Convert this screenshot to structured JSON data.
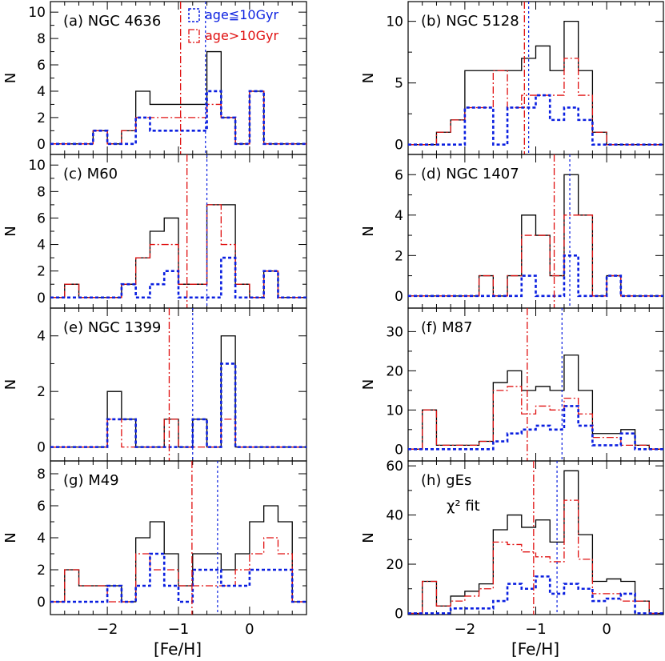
{
  "figure": {
    "xlabel_prefix": "[Fe/H]",
    "legend": {
      "young_label": "age≦10Gyr",
      "old_label": "age>10Gyr"
    },
    "colors": {
      "total": "#000000",
      "young": "#0a1fe0",
      "old": "#e01010"
    }
  },
  "chart_data": [
    {
      "type": "histogram",
      "panel_label": "(a) NGC 4636",
      "xlim": [
        -2.8,
        0.8
      ],
      "ylim": [
        -0.8,
        10.8
      ],
      "yticks": [
        0,
        2,
        4,
        6,
        8,
        10
      ],
      "ytick_labels": [
        "0",
        "2",
        "4",
        "6",
        "8",
        "10"
      ],
      "xticks": [
        -2,
        -1,
        0
      ],
      "xtick_labels": [],
      "ylabel": "N",
      "bin_edges": [
        -2.8,
        -2.6,
        -2.4,
        -2.2,
        -2.0,
        -1.8,
        -1.6,
        -1.4,
        -1.2,
        -1.0,
        -0.8,
        -0.6,
        -0.4,
        -0.2,
        0.0,
        0.2,
        0.4,
        0.6,
        0.8
      ],
      "series": [
        {
          "name": "total",
          "values": [
            0,
            0,
            0,
            1,
            0,
            1,
            4,
            3,
            3,
            3,
            3,
            7,
            2,
            0,
            4,
            0,
            0,
            0
          ]
        },
        {
          "name": "old",
          "values": [
            0,
            0,
            0,
            1,
            0,
            1,
            2,
            2,
            2,
            2,
            2,
            3,
            2,
            0,
            4,
            0,
            0,
            0
          ]
        },
        {
          "name": "young",
          "values": [
            0,
            0,
            0,
            1,
            0,
            0,
            2,
            1,
            1,
            1,
            1,
            4,
            2,
            0,
            4,
            0,
            0,
            0
          ]
        }
      ],
      "mean_old": -0.97,
      "mean_young": -0.62,
      "show_legend": true
    },
    {
      "type": "histogram",
      "panel_label": "(b) NGC 5128",
      "xlim": [
        -2.8,
        0.8
      ],
      "ylim": [
        -0.8,
        11.6
      ],
      "yticks": [
        0,
        5,
        10
      ],
      "ytick_labels": [
        "0",
        "5",
        "10"
      ],
      "xticks": [
        -2,
        -1,
        0
      ],
      "xtick_labels": [],
      "ylabel": "N",
      "bin_edges": [
        -2.8,
        -2.6,
        -2.4,
        -2.2,
        -2.0,
        -1.8,
        -1.6,
        -1.4,
        -1.2,
        -1.0,
        -0.8,
        -0.6,
        -0.4,
        -0.2,
        0.0,
        0.2,
        0.4,
        0.6,
        0.8
      ],
      "series": [
        {
          "name": "total",
          "values": [
            0,
            0,
            1,
            2,
            6,
            6,
            6,
            6,
            7,
            8,
            6,
            10,
            6,
            1,
            0,
            0,
            0,
            0
          ]
        },
        {
          "name": "old",
          "values": [
            0,
            0,
            1,
            2,
            3,
            3,
            6,
            3,
            4,
            4,
            4,
            7,
            4,
            1,
            0,
            0,
            0,
            0
          ]
        },
        {
          "name": "young",
          "values": [
            0,
            0,
            0,
            0,
            3,
            3,
            0,
            3,
            3,
            4,
            2,
            3,
            2,
            0,
            0,
            0,
            0,
            0
          ]
        }
      ],
      "mean_old": -1.16,
      "mean_young": -1.1,
      "show_legend": false
    },
    {
      "type": "histogram",
      "panel_label": "(c) M60",
      "xlim": [
        -2.8,
        0.8
      ],
      "ylim": [
        -0.8,
        10.8
      ],
      "yticks": [
        0,
        2,
        4,
        6,
        8,
        10
      ],
      "ytick_labels": [
        "0",
        "2",
        "4",
        "6",
        "8",
        "10"
      ],
      "xticks": [
        -2,
        -1,
        0
      ],
      "xtick_labels": [],
      "ylabel": "N",
      "bin_edges": [
        -2.8,
        -2.6,
        -2.4,
        -2.2,
        -2.0,
        -1.8,
        -1.6,
        -1.4,
        -1.2,
        -1.0,
        -0.8,
        -0.6,
        -0.4,
        -0.2,
        0.0,
        0.2,
        0.4,
        0.6,
        0.8
      ],
      "series": [
        {
          "name": "total",
          "values": [
            0,
            1,
            0,
            0,
            0,
            1,
            3,
            5,
            6,
            1,
            1,
            7,
            7,
            1,
            0,
            2,
            0,
            0
          ]
        },
        {
          "name": "old",
          "values": [
            0,
            1,
            0,
            0,
            0,
            1,
            3,
            4,
            4,
            1,
            1,
            7,
            4,
            1,
            0,
            2,
            0,
            0
          ]
        },
        {
          "name": "young",
          "values": [
            0,
            0,
            0,
            0,
            0,
            1,
            0,
            1,
            2,
            0,
            0,
            0,
            3,
            0,
            0,
            2,
            0,
            0
          ]
        }
      ],
      "mean_old": -0.88,
      "mean_young": -0.6,
      "show_legend": false
    },
    {
      "type": "histogram",
      "panel_label": "(d) NGC 1407",
      "xlim": [
        -2.8,
        0.8
      ],
      "ylim": [
        -0.6,
        7.0
      ],
      "yticks": [
        0,
        2,
        4,
        6
      ],
      "ytick_labels": [
        "0",
        "2",
        "4",
        "6"
      ],
      "xticks": [
        -2,
        -1,
        0
      ],
      "xtick_labels": [],
      "ylabel": "N",
      "bin_edges": [
        -2.8,
        -2.6,
        -2.4,
        -2.2,
        -2.0,
        -1.8,
        -1.6,
        -1.4,
        -1.2,
        -1.0,
        -0.8,
        -0.6,
        -0.4,
        -0.2,
        0.0,
        0.2,
        0.4,
        0.6,
        0.8
      ],
      "series": [
        {
          "name": "total",
          "values": [
            0,
            0,
            0,
            0,
            0,
            1,
            0,
            1,
            4,
            3,
            1,
            6,
            4,
            0,
            1,
            0,
            0,
            0
          ]
        },
        {
          "name": "old",
          "values": [
            0,
            0,
            0,
            0,
            0,
            1,
            0,
            1,
            3,
            3,
            1,
            4,
            4,
            0,
            1,
            0,
            0,
            0
          ]
        },
        {
          "name": "young",
          "values": [
            0,
            0,
            0,
            0,
            0,
            0,
            0,
            0,
            1,
            0,
            0,
            2,
            0,
            0,
            1,
            0,
            0,
            0
          ]
        }
      ],
      "mean_old": -0.74,
      "mean_young": -0.52,
      "show_legend": false
    },
    {
      "type": "histogram",
      "panel_label": "(e) NGC 1399",
      "xlim": [
        -2.8,
        0.8
      ],
      "ylim": [
        -0.5,
        5.0
      ],
      "yticks": [
        0,
        2,
        4
      ],
      "ytick_labels": [
        "0",
        "2",
        "4"
      ],
      "xticks": [
        -2,
        -1,
        0
      ],
      "xtick_labels": [],
      "ylabel": "N",
      "bin_edges": [
        -2.8,
        -2.6,
        -2.4,
        -2.2,
        -2.0,
        -1.8,
        -1.6,
        -1.4,
        -1.2,
        -1.0,
        -0.8,
        -0.6,
        -0.4,
        -0.2,
        0.0,
        0.2,
        0.4,
        0.6,
        0.8
      ],
      "series": [
        {
          "name": "total",
          "values": [
            0,
            0,
            0,
            0,
            2,
            1,
            0,
            0,
            1,
            0,
            1,
            0,
            4,
            0,
            0,
            0,
            0,
            0
          ]
        },
        {
          "name": "old",
          "values": [
            0,
            0,
            0,
            0,
            1,
            0,
            0,
            0,
            1,
            0,
            0,
            0,
            1,
            0,
            0,
            0,
            0,
            0
          ]
        },
        {
          "name": "young",
          "values": [
            0,
            0,
            0,
            0,
            1,
            1,
            0,
            0,
            0,
            0,
            1,
            0,
            3,
            0,
            0,
            0,
            0,
            0
          ]
        }
      ],
      "mean_old": -1.13,
      "mean_young": -0.8,
      "show_legend": false
    },
    {
      "type": "histogram",
      "panel_label": "(f) M87",
      "xlim": [
        -2.8,
        0.8
      ],
      "ylim": [
        -3.0,
        36.0
      ],
      "yticks": [
        0,
        10,
        20,
        30
      ],
      "ytick_labels": [
        "0",
        "10",
        "20",
        "30"
      ],
      "xticks": [
        -2,
        -1,
        0
      ],
      "xtick_labels": [],
      "ylabel": "N",
      "bin_edges": [
        -2.8,
        -2.6,
        -2.4,
        -2.2,
        -2.0,
        -1.8,
        -1.6,
        -1.4,
        -1.2,
        -1.0,
        -0.8,
        -0.6,
        -0.4,
        -0.2,
        0.0,
        0.2,
        0.4,
        0.6,
        0.8
      ],
      "series": [
        {
          "name": "total",
          "values": [
            0,
            10,
            1,
            1,
            1,
            2,
            17,
            20,
            15,
            16,
            15,
            24,
            15,
            4,
            4,
            5,
            1,
            0
          ]
        },
        {
          "name": "old",
          "values": [
            0,
            10,
            1,
            1,
            1,
            2,
            15,
            16,
            9,
            11,
            10,
            13,
            9,
            3,
            3,
            1,
            1,
            0
          ]
        },
        {
          "name": "young",
          "values": [
            0,
            0,
            0,
            0,
            0,
            0,
            2,
            4,
            5,
            6,
            5,
            11,
            6,
            1,
            1,
            4,
            0,
            0
          ]
        }
      ],
      "mean_old": -1.12,
      "mean_young": -0.63,
      "show_legend": false
    },
    {
      "type": "histogram",
      "panel_label": "(g) M49",
      "xlim": [
        -2.8,
        0.8
      ],
      "ylim": [
        -0.8,
        8.8
      ],
      "yticks": [
        0,
        2,
        4,
        6,
        8
      ],
      "ytick_labels": [
        "0",
        "2",
        "4",
        "6",
        "8"
      ],
      "xticks": [
        -2,
        -1,
        0
      ],
      "xtick_labels": [
        "−2",
        "−1",
        "0"
      ],
      "ylabel": "N",
      "bin_edges": [
        -2.8,
        -2.6,
        -2.4,
        -2.2,
        -2.0,
        -1.8,
        -1.6,
        -1.4,
        -1.2,
        -1.0,
        -0.8,
        -0.6,
        -0.4,
        -0.2,
        0.0,
        0.2,
        0.4,
        0.6,
        0.8
      ],
      "series": [
        {
          "name": "total",
          "values": [
            0,
            2,
            1,
            1,
            1,
            0,
            4,
            5,
            3,
            1,
            3,
            3,
            2,
            3,
            5,
            6,
            5,
            0
          ]
        },
        {
          "name": "old",
          "values": [
            0,
            2,
            1,
            1,
            0,
            0,
            3,
            2,
            2,
            1,
            1,
            1,
            1,
            2,
            3,
            4,
            3,
            0
          ]
        },
        {
          "name": "young",
          "values": [
            0,
            0,
            0,
            0,
            1,
            0,
            1,
            3,
            1,
            0,
            2,
            2,
            1,
            1,
            2,
            2,
            2,
            0
          ]
        }
      ],
      "mean_old": -0.81,
      "mean_young": -0.45,
      "show_legend": false
    },
    {
      "type": "histogram",
      "panel_label": "(h) gEs",
      "panel_sublabel": "χ² fit",
      "xlim": [
        -2.8,
        0.8
      ],
      "ylim": [
        -0.5,
        62.0
      ],
      "yticks": [
        0,
        20,
        40,
        60
      ],
      "ytick_labels": [
        "0",
        "20",
        "40",
        "60"
      ],
      "xticks": [
        -2,
        -1,
        0
      ],
      "xtick_labels": [
        "−2",
        "−1",
        "0"
      ],
      "ylabel": "N",
      "bin_edges": [
        -2.8,
        -2.6,
        -2.4,
        -2.2,
        -2.0,
        -1.8,
        -1.6,
        -1.4,
        -1.2,
        -1.0,
        -0.8,
        -0.6,
        -0.4,
        -0.2,
        0.0,
        0.2,
        0.4,
        0.6,
        0.8
      ],
      "series": [
        {
          "name": "total",
          "values": [
            0,
            13,
            3,
            7,
            9,
            12,
            34,
            40,
            35,
            38,
            29,
            58,
            32,
            13,
            14,
            13,
            5,
            0
          ]
        },
        {
          "name": "old",
          "values": [
            0,
            13,
            3,
            5,
            7,
            10,
            29,
            28,
            25,
            23,
            21,
            46,
            22,
            8,
            8,
            5,
            5,
            0
          ]
        },
        {
          "name": "young",
          "values": [
            0,
            0,
            0,
            2,
            2,
            2,
            5,
            12,
            10,
            15,
            8,
            12,
            10,
            5,
            6,
            8,
            0,
            0
          ]
        }
      ],
      "mean_old": -1.03,
      "mean_young": -0.7,
      "show_legend": false
    }
  ]
}
